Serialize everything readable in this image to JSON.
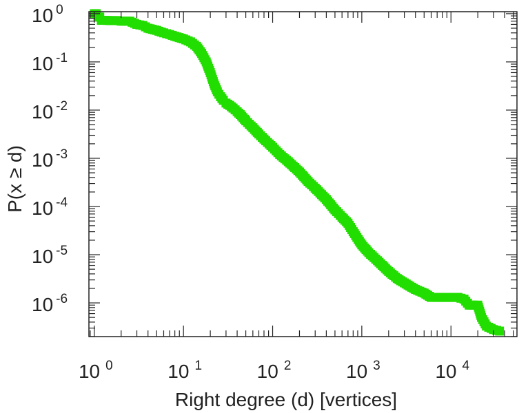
{
  "chart_data": {
    "type": "scatter",
    "title": "",
    "xlabel": "Right degree (d) [vertices]",
    "ylabel": "P(x ≥ d)",
    "xscale": "log",
    "yscale": "log",
    "xlim": [
      0.87,
      55000
    ],
    "ylim": [
      2e-07,
      1.1
    ],
    "grid": false,
    "legend": "none",
    "marker": "square",
    "series_color": "#22dd00",
    "axis_color": "#222222",
    "x_ticks": [
      {
        "base": "10",
        "exp": "0",
        "value": 1
      },
      {
        "base": "10",
        "exp": "1",
        "value": 10
      },
      {
        "base": "10",
        "exp": "2",
        "value": 100
      },
      {
        "base": "10",
        "exp": "3",
        "value": 1000
      },
      {
        "base": "10",
        "exp": "4",
        "value": 10000
      }
    ],
    "y_ticks": [
      {
        "base": "10",
        "exp": "0",
        "value": 1
      },
      {
        "base": "10",
        "exp": "-1",
        "value": 0.1
      },
      {
        "base": "10",
        "exp": "-2",
        "value": 0.01
      },
      {
        "base": "10",
        "exp": "-3",
        "value": 0.001
      },
      {
        "base": "10",
        "exp": "-4",
        "value": 0.0001
      },
      {
        "base": "10",
        "exp": "-5",
        "value": 1e-05
      },
      {
        "base": "10",
        "exp": "-6",
        "value": 1e-06
      }
    ],
    "series": [
      {
        "x": [
          1,
          1.05,
          1.1,
          1.15,
          1.2,
          1.3,
          1.5,
          1.8,
          2,
          2.5,
          3,
          3.5,
          4,
          5,
          6,
          7,
          8,
          10,
          12,
          14,
          16,
          18,
          20,
          22,
          24,
          26,
          28,
          30,
          33,
          36,
          40,
          45,
          50,
          60,
          70,
          80,
          100,
          120,
          150,
          200,
          250,
          300,
          400,
          500,
          600,
          700,
          800,
          1000,
          1200,
          1500,
          2000,
          2500,
          3000,
          4000,
          5000,
          6000,
          7000,
          8000,
          10000,
          12000,
          14000,
          16000,
          18000,
          20000,
          22000,
          25000,
          30000,
          35000
        ],
        "y": [
          1,
          1,
          0.85,
          0.85,
          0.73,
          0.73,
          0.72,
          0.72,
          0.7,
          0.7,
          0.6,
          0.57,
          0.5,
          0.45,
          0.4,
          0.37,
          0.34,
          0.3,
          0.26,
          0.21,
          0.15,
          0.1,
          0.06,
          0.035,
          0.024,
          0.019,
          0.016,
          0.014,
          0.0125,
          0.011,
          0.0093,
          0.0075,
          0.006,
          0.0043,
          0.0032,
          0.0025,
          0.0017,
          0.0012,
          0.00085,
          0.00052,
          0.00033,
          0.00024,
          0.00014,
          8.5e-05,
          6e-05,
          4.5e-05,
          3e-05,
          1.6e-05,
          1.1e-05,
          7.5e-06,
          4.5e-06,
          3.2e-06,
          2.6e-06,
          1.9e-06,
          1.6e-06,
          1.3e-06,
          1.3e-06,
          1.3e-06,
          1.3e-06,
          1.3e-06,
          1.2e-06,
          9e-07,
          9e-07,
          9e-07,
          5e-07,
          3.3e-07,
          2.8e-07,
          2.6e-07
        ]
      }
    ]
  }
}
